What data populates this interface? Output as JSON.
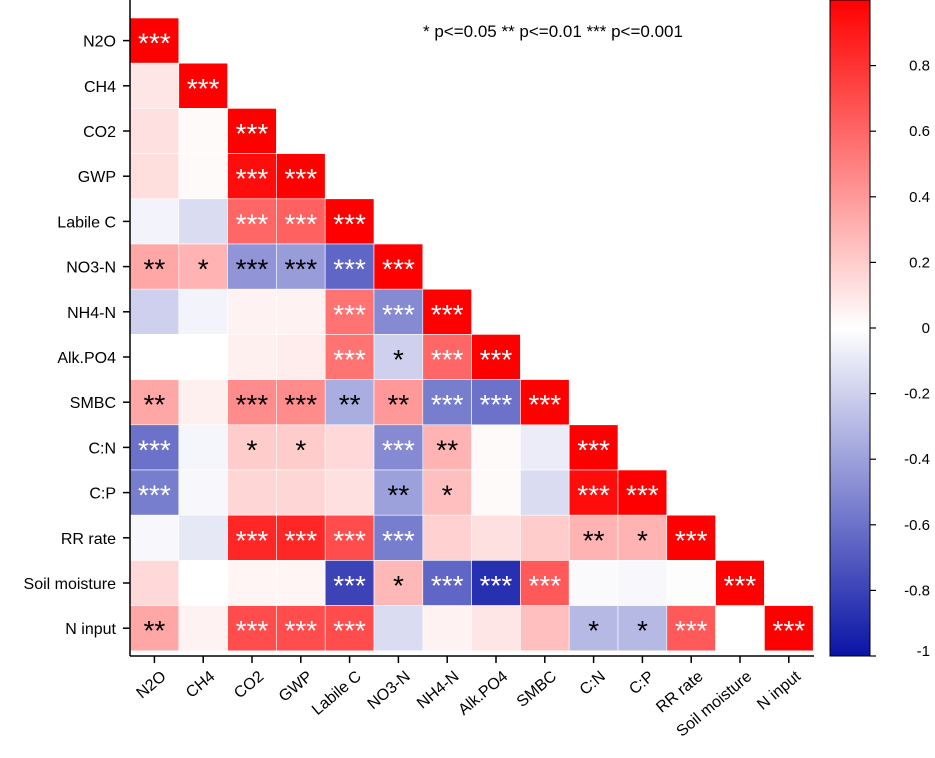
{
  "chart_data": {
    "type": "heatmap",
    "variables": [
      "N2O",
      "CH4",
      "CO2",
      "GWP",
      "Labile C",
      "NO3-N",
      "NH4-N",
      "Alk.PO4",
      "SMBC",
      "C:N",
      "C:P",
      "RR rate",
      "Soil moisture",
      "N input"
    ],
    "matrix": [
      [
        1.0
      ],
      [
        0.1,
        1.0
      ],
      [
        0.12,
        0.02,
        1.0
      ],
      [
        0.13,
        0.02,
        0.95,
        1.0
      ],
      [
        -0.05,
        -0.15,
        0.6,
        0.62,
        1.0
      ],
      [
        0.35,
        0.3,
        -0.45,
        -0.42,
        -0.65,
        1.0
      ],
      [
        -0.2,
        -0.05,
        0.05,
        0.05,
        0.55,
        -0.5,
        1.0
      ],
      [
        0.0,
        0.0,
        0.06,
        0.07,
        0.55,
        -0.2,
        0.6,
        1.0
      ],
      [
        0.35,
        0.06,
        0.45,
        0.45,
        -0.35,
        0.4,
        -0.55,
        -0.6,
        1.0
      ],
      [
        -0.6,
        -0.04,
        0.2,
        0.2,
        0.15,
        -0.5,
        0.3,
        0.02,
        -0.08,
        1.0
      ],
      [
        -0.55,
        -0.03,
        0.16,
        0.16,
        0.12,
        -0.4,
        0.25,
        0.02,
        -0.15,
        0.95,
        1.0
      ],
      [
        -0.03,
        -0.1,
        0.85,
        0.85,
        0.7,
        -0.55,
        0.18,
        0.12,
        0.2,
        0.3,
        0.3,
        1.0
      ],
      [
        0.15,
        0.0,
        0.04,
        0.04,
        -0.8,
        0.28,
        -0.65,
        -0.88,
        0.65,
        -0.02,
        -0.03,
        -0.01,
        1.0
      ],
      [
        0.35,
        0.05,
        0.7,
        0.7,
        0.7,
        -0.15,
        0.05,
        0.1,
        0.25,
        -0.3,
        -0.3,
        0.65,
        0.0,
        1.0
      ]
    ],
    "significance": [
      [
        "***"
      ],
      [
        "",
        "***"
      ],
      [
        "",
        "",
        "***"
      ],
      [
        "",
        "",
        "***",
        "***"
      ],
      [
        "",
        "",
        "***",
        "***",
        "***"
      ],
      [
        "**",
        "*",
        "***",
        "***",
        "***",
        "***"
      ],
      [
        "",
        "",
        "",
        "",
        "***",
        "***",
        "***"
      ],
      [
        "",
        "",
        "",
        "",
        "***",
        "*",
        "***",
        "***"
      ],
      [
        "**",
        "",
        "***",
        "***",
        "**",
        "**",
        "***",
        "***",
        "***"
      ],
      [
        "***",
        "",
        "*",
        "*",
        "",
        "***",
        "**",
        "",
        "",
        "***"
      ],
      [
        "***",
        "",
        "",
        "",
        "",
        "**",
        "*",
        "",
        "",
        "***",
        "***"
      ],
      [
        "",
        "",
        "***",
        "***",
        "***",
        "***",
        "",
        "",
        "",
        "**",
        "*",
        "***"
      ],
      [
        "",
        "",
        "",
        "",
        "***",
        "*",
        "***",
        "***",
        "***",
        "",
        "",
        "",
        "***"
      ],
      [
        "**",
        "",
        "***",
        "***",
        "***",
        "",
        "",
        "",
        "",
        "*",
        "*",
        "***",
        "",
        "***"
      ]
    ],
    "significance_legend": "* p<=0.05   ** p<=0.01   *** p<=0.001",
    "colorbar": {
      "range": [
        -1,
        1
      ],
      "ticks": [
        "0.8",
        "0.6",
        "0.4",
        "0.2",
        "0",
        "-0.2",
        "-0.4",
        "-0.6",
        "-0.8",
        "-1"
      ],
      "tick_values": [
        0.8,
        0.6,
        0.4,
        0.2,
        0,
        -0.2,
        -0.4,
        -0.6,
        -0.8,
        -1
      ],
      "colors": {
        "negative": "#0a14a5",
        "zero": "#ffffff",
        "positive": "#ff0000"
      }
    }
  }
}
